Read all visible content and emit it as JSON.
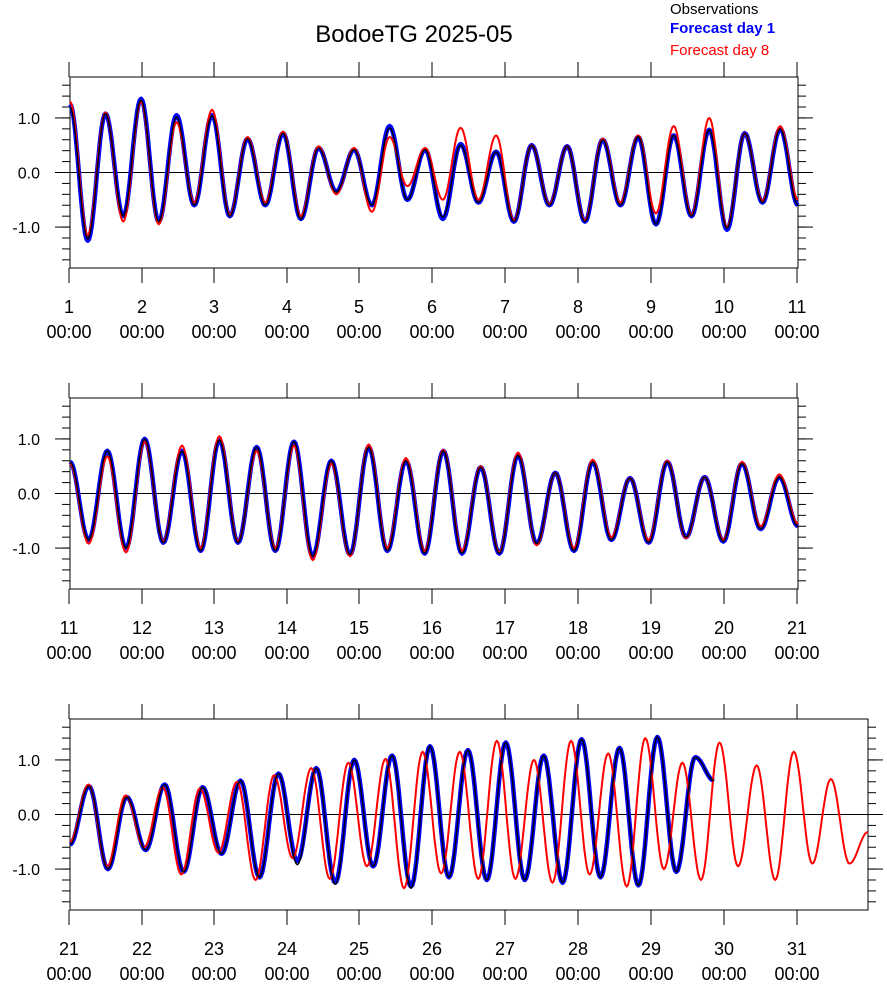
{
  "title": "BodoeTG 2025-05",
  "legend": {
    "placement": "top-right",
    "items": [
      {
        "label": "Observations",
        "color": "#000000",
        "bold": false
      },
      {
        "label": "Forecast day 1",
        "color": "#0000ff",
        "bold": true
      },
      {
        "label": "Forecast day 8",
        "color": "#ff0000",
        "bold": false
      }
    ]
  },
  "colors": {
    "observations": "#000000",
    "forecast_day1": "#0000ff",
    "forecast_day8": "#ff0000",
    "axis": "#000000",
    "zero_line": "#000000"
  },
  "chart_data": [
    {
      "type": "line",
      "panel": 1,
      "xlim": [
        1,
        11
      ],
      "ylim": [
        -1.75,
        1.75
      ],
      "ytick_labels": [
        "1.0",
        "0.0",
        "-1.0"
      ],
      "ytick_values": [
        1.0,
        0.0,
        -1.0
      ],
      "xtick_labels": [
        [
          "1",
          "00:00"
        ],
        [
          "2",
          "00:00"
        ],
        [
          "3",
          "00:00"
        ],
        [
          "4",
          "00:00"
        ],
        [
          "5",
          "00:00"
        ],
        [
          "6",
          "00:00"
        ],
        [
          "7",
          "00:00"
        ],
        [
          "8",
          "00:00"
        ],
        [
          "9",
          "00:00"
        ],
        [
          "10",
          "00:00"
        ],
        [
          "11",
          "00:00"
        ]
      ],
      "grid": false,
      "zero_line": true,
      "series": [
        {
          "name": "Forecast day 1",
          "x_start": 1.0,
          "x_end": 11.0,
          "highs": [
            1.25,
            1.08,
            1.35,
            1.05,
            1.05,
            0.62,
            0.72,
            0.45,
            0.42,
            0.85,
            0.42,
            0.52,
            0.38,
            0.5,
            0.48,
            0.6,
            0.65,
            0.68,
            0.78,
            0.72,
            0.8
          ],
          "lows": [
            -1.25,
            -0.8,
            -0.9,
            -0.6,
            -0.8,
            -0.6,
            -0.85,
            -0.35,
            -0.6,
            -0.5,
            -0.85,
            -0.55,
            -0.9,
            -0.6,
            -0.9,
            -0.6,
            -0.95,
            -0.8,
            -1.05,
            -0.55,
            -0.6
          ]
        },
        {
          "name": "Forecast day 8",
          "x_start": 1.0,
          "x_end": 11.0,
          "highs": [
            1.3,
            1.1,
            1.3,
            0.92,
            1.15,
            0.65,
            0.75,
            0.48,
            0.45,
            0.65,
            0.45,
            0.82,
            0.68,
            0.5,
            0.48,
            0.62,
            0.68,
            0.85,
            1.0,
            0.72,
            0.85
          ],
          "lows": [
            -1.15,
            -0.9,
            -0.95,
            -0.55,
            -0.78,
            -0.55,
            -0.8,
            -0.4,
            -0.72,
            -0.25,
            -0.5,
            -0.5,
            -0.88,
            -0.58,
            -0.88,
            -0.55,
            -0.75,
            -0.78,
            -1.0,
            -0.52,
            -0.5
          ]
        },
        {
          "name": "Observations",
          "x_start": 1.0,
          "x_end": 11.0,
          "highs": [
            1.2,
            1.08,
            1.33,
            1.02,
            1.04,
            0.62,
            0.72,
            0.45,
            0.42,
            0.82,
            0.42,
            0.5,
            0.38,
            0.5,
            0.48,
            0.6,
            0.66,
            0.68,
            0.78,
            0.72,
            0.8
          ],
          "lows": [
            -1.22,
            -0.8,
            -0.9,
            -0.6,
            -0.8,
            -0.6,
            -0.85,
            -0.36,
            -0.6,
            -0.5,
            -0.82,
            -0.55,
            -0.9,
            -0.6,
            -0.9,
            -0.6,
            -0.95,
            -0.8,
            -1.02,
            -0.55,
            -0.6
          ]
        }
      ]
    },
    {
      "type": "line",
      "panel": 2,
      "xlim": [
        11,
        21
      ],
      "ylim": [
        -1.75,
        1.75
      ],
      "ytick_labels": [
        "1.0",
        "0.0",
        "-1.0"
      ],
      "ytick_values": [
        1.0,
        0.0,
        -1.0
      ],
      "xtick_labels": [
        [
          "11",
          "00:00"
        ],
        [
          "12",
          "00:00"
        ],
        [
          "13",
          "00:00"
        ],
        [
          "14",
          "00:00"
        ],
        [
          "15",
          "00:00"
        ],
        [
          "16",
          "00:00"
        ],
        [
          "17",
          "00:00"
        ],
        [
          "18",
          "00:00"
        ],
        [
          "19",
          "00:00"
        ],
        [
          "20",
          "00:00"
        ],
        [
          "21",
          "00:00"
        ]
      ],
      "grid": false,
      "zero_line": true,
      "series": [
        {
          "name": "Forecast day 1",
          "x_start": 11.0,
          "x_end": 21.0,
          "highs": [
            0.58,
            0.78,
            1.0,
            0.78,
            0.98,
            0.85,
            0.95,
            0.6,
            0.85,
            0.6,
            0.78,
            0.48,
            0.7,
            0.38,
            0.58,
            0.28,
            0.58,
            0.3,
            0.55,
            0.3
          ],
          "lows": [
            -0.85,
            -1.0,
            -0.9,
            -1.05,
            -0.9,
            -1.05,
            -1.15,
            -1.12,
            -1.05,
            -1.1,
            -1.1,
            -1.1,
            -0.92,
            -1.05,
            -0.85,
            -0.9,
            -0.8,
            -0.88,
            -0.65
          ],
          "end_value": -0.6
        },
        {
          "name": "Forecast day 8",
          "x_start": 11.0,
          "x_end": 21.0,
          "highs": [
            0.55,
            0.68,
            0.95,
            0.88,
            1.05,
            0.78,
            0.88,
            0.55,
            0.9,
            0.65,
            0.8,
            0.5,
            0.75,
            0.38,
            0.62,
            0.28,
            0.6,
            0.3,
            0.58,
            0.35
          ],
          "lows": [
            -0.92,
            -1.08,
            -0.88,
            -1.0,
            -0.88,
            -1.0,
            -1.22,
            -1.15,
            -1.0,
            -1.05,
            -1.05,
            -1.08,
            -0.95,
            -1.0,
            -0.8,
            -0.85,
            -0.82,
            -0.85,
            -0.6
          ],
          "end_value": -0.55
        },
        {
          "name": "Observations",
          "x_start": 11.0,
          "x_end": 21.0,
          "highs": [
            0.58,
            0.78,
            1.0,
            0.78,
            0.98,
            0.85,
            0.95,
            0.6,
            0.85,
            0.6,
            0.78,
            0.48,
            0.7,
            0.38,
            0.58,
            0.28,
            0.58,
            0.3,
            0.55,
            0.3
          ],
          "lows": [
            -0.85,
            -1.0,
            -0.9,
            -1.05,
            -0.9,
            -1.05,
            -1.15,
            -1.12,
            -1.05,
            -1.1,
            -1.1,
            -1.1,
            -0.92,
            -1.05,
            -0.85,
            -0.9,
            -0.8,
            -0.88,
            -0.65
          ],
          "end_value": -0.6
        }
      ]
    },
    {
      "type": "line",
      "panel": 3,
      "xlim": [
        21,
        32
      ],
      "ylim": [
        -1.75,
        1.75
      ],
      "ytick_labels": [
        "1.0",
        "0.0",
        "-1.0"
      ],
      "ytick_values": [
        1.0,
        0.0,
        -1.0
      ],
      "xtick_labels": [
        [
          "21",
          "00:00"
        ],
        [
          "22",
          "00:00"
        ],
        [
          "23",
          "00:00"
        ],
        [
          "24",
          "00:00"
        ],
        [
          "25",
          "00:00"
        ],
        [
          "26",
          "00:00"
        ],
        [
          "27",
          "00:00"
        ],
        [
          "28",
          "00:00"
        ],
        [
          "29",
          "00:00"
        ],
        [
          "30",
          "00:00"
        ],
        [
          "31",
          "00:00"
        ]
      ],
      "grid": false,
      "zero_line": true,
      "series": [
        {
          "name": "Forecast day 1",
          "x_start": 21.0,
          "x_end": 29.88,
          "start_value": -0.55,
          "highs": [
            0.52,
            0.32,
            0.55,
            0.5,
            0.62,
            0.75,
            0.85,
            1.0,
            1.08,
            1.25,
            1.18,
            1.32,
            1.08,
            1.38,
            1.22,
            1.42,
            1.05
          ],
          "lows": [
            -1.0,
            -0.65,
            -1.05,
            -0.72,
            -1.15,
            -0.85,
            -1.25,
            -0.95,
            -1.32,
            -1.15,
            -1.2,
            -1.2,
            -1.25,
            -1.15,
            -1.3,
            -1.05
          ],
          "end_value": 0.62
        },
        {
          "name": "Forecast day 8",
          "x_start": 21.0,
          "x_end": 32.0,
          "start_value": -0.5,
          "highs": [
            0.55,
            0.35,
            0.5,
            0.48,
            0.6,
            0.72,
            0.85,
            0.95,
            1.02,
            1.15,
            1.15,
            1.35,
            1.0,
            1.35,
            1.12,
            1.4,
            0.95,
            1.32,
            0.9,
            1.15,
            0.65
          ],
          "lows": [
            -0.95,
            -0.6,
            -1.1,
            -0.7,
            -1.2,
            -0.8,
            -1.18,
            -0.95,
            -1.35,
            -1.08,
            -1.18,
            -1.18,
            -1.25,
            -1.1,
            -1.32,
            -1.0,
            -1.2,
            -0.95,
            -1.2,
            -0.9,
            -0.9
          ],
          "end_value": -0.32
        },
        {
          "name": "Observations",
          "x_start": 21.0,
          "x_end": 29.88,
          "start_value": -0.55,
          "highs": [
            0.52,
            0.32,
            0.55,
            0.5,
            0.62,
            0.75,
            0.85,
            1.0,
            1.08,
            1.25,
            1.18,
            1.32,
            1.08,
            1.38,
            1.22,
            1.42,
            1.05
          ],
          "lows": [
            -1.0,
            -0.65,
            -1.05,
            -0.72,
            -1.15,
            -0.92,
            -1.28,
            -0.95,
            -1.35,
            -1.15,
            -1.2,
            -1.2,
            -1.25,
            -1.15,
            -1.3,
            -1.05
          ],
          "end_value": 0.62
        }
      ]
    }
  ]
}
